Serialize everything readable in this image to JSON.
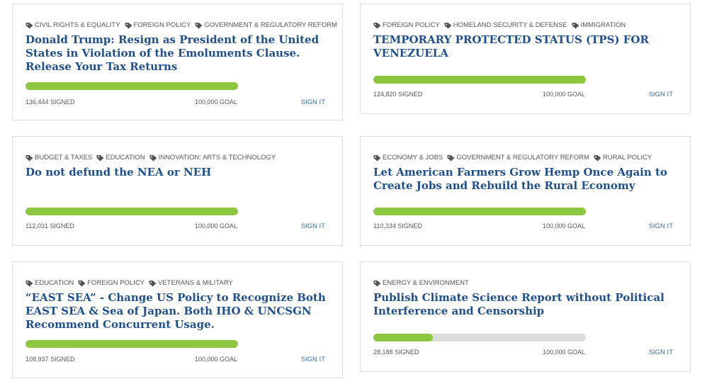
{
  "petitions": [
    {
      "tags": [
        "CIVIL RIGHTS & EQUALITY",
        "FOREIGN POLICY",
        "GOVERNMENT & REGULATORY REFORM"
      ],
      "title": "Donald Trump: Resign as President of the United States in Violation of the Emoluments Clause. Release Your Tax Returns",
      "signed": "136,444 SIGNED",
      "goal": "100,000 GOAL",
      "progress": 1.0,
      "sign_label": "SIGN IT"
    },
    {
      "tags": [
        "FOREIGN POLICY",
        "HOMELAND SECURITY & DEFENSE",
        "IMMIGRATION"
      ],
      "title": "TEMPORARY PROTECTED STATUS (TPS) FOR VENEZUELA",
      "signed": "124,820 SIGNED",
      "goal": "100,000 GOAL",
      "progress": 1.0,
      "sign_label": "SIGN IT"
    },
    {
      "tags": [
        "BUDGET & TAXES",
        "EDUCATION",
        "INNOVATION: ARTS & TECHNOLOGY"
      ],
      "title": "Do not defund the NEA or NEH",
      "signed": "112,031 SIGNED",
      "goal": "100,000 GOAL",
      "progress": 1.0,
      "sign_label": "SIGN IT"
    },
    {
      "tags": [
        "ECONOMY & JOBS",
        "GOVERNMENT & REGULATORY REFORM",
        "RURAL POLICY"
      ],
      "title": "Let American Farmers Grow Hemp Once Again to Create Jobs and Rebuild the Rural Economy",
      "signed": "110,334 SIGNED",
      "goal": "100,000 GOAL",
      "progress": 1.0,
      "sign_label": "SIGN IT"
    },
    {
      "tags": [
        "EDUCATION",
        "FOREIGN POLICY",
        "VETERANS & MILITARY"
      ],
      "title": "“EAST SEA” - Change US Policy to Recognize Both EAST SEA & Sea of Japan. Both IHO & UNCSGN Recommend Concurrent Usage.",
      "signed": "108,937 SIGNED",
      "goal": "100,000 GOAL",
      "progress": 1.0,
      "sign_label": "SIGN IT"
    },
    {
      "tags": [
        "ENERGY & ENVIRONMENT"
      ],
      "title": "Publish Climate Science Report without Political Interference and Censorship",
      "signed": "28,188 SIGNED",
      "goal": "100,000 GOAL",
      "progress": 0.28,
      "sign_label": "SIGN IT"
    }
  ],
  "colors": {
    "title": "#1f4f8c",
    "progress_fill": "#8dc63f",
    "progress_track": "#dddddd",
    "link": "#3a6ea5"
  },
  "tag_icon": "tag-icon"
}
